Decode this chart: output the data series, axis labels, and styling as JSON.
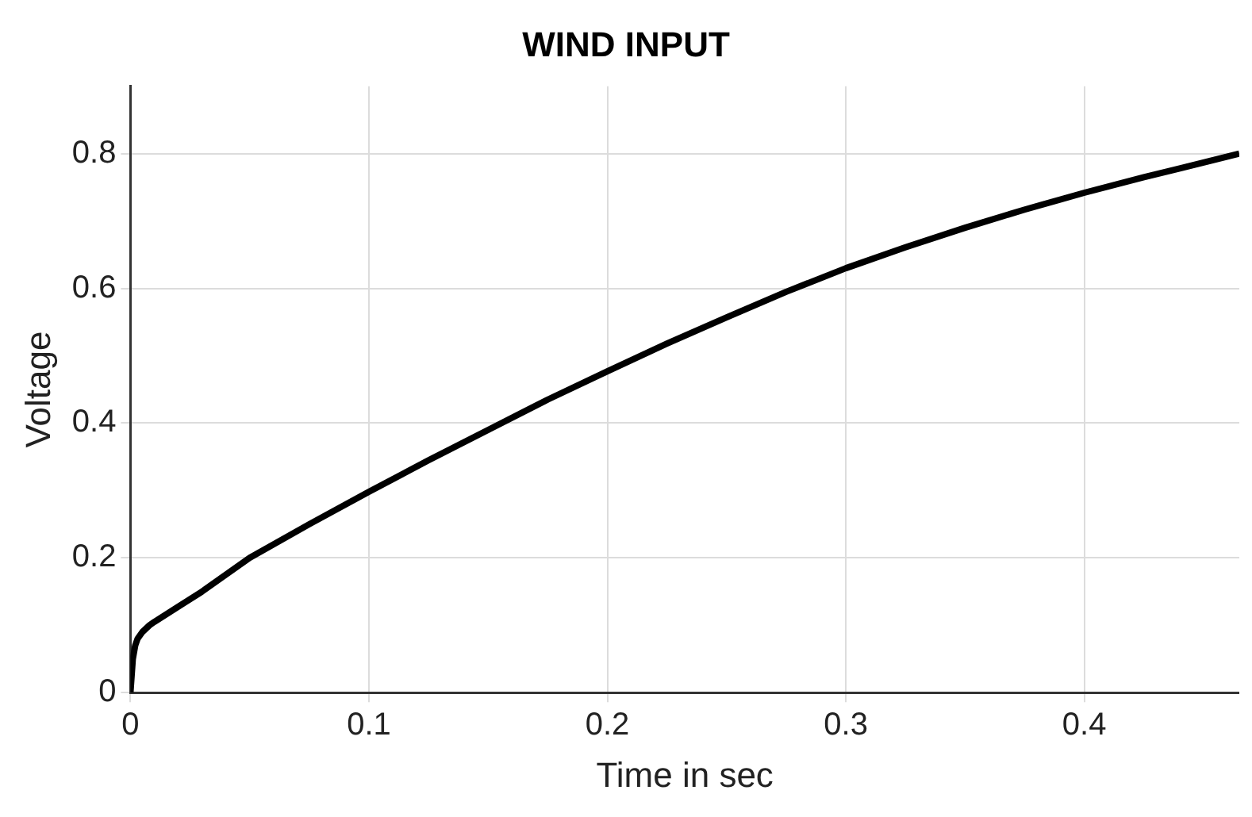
{
  "chart_data": {
    "type": "line",
    "title": "WIND INPUT",
    "xlabel": "Time in sec",
    "ylabel": "Voltage",
    "xlim": [
      0,
      0.465
    ],
    "xticks": [
      0,
      0.1,
      0.2,
      0.3,
      0.4
    ],
    "ylim": [
      0,
      0.9
    ],
    "yticks": [
      0,
      0.2,
      0.4,
      0.6,
      0.8
    ],
    "grid": true,
    "series": [
      {
        "color": "#000000",
        "x": [
          0,
          0.001,
          0.002,
          0.003,
          0.005,
          0.008,
          0.01,
          0.03,
          0.05,
          0.075,
          0.1,
          0.125,
          0.15,
          0.175,
          0.2,
          0.225,
          0.25,
          0.275,
          0.3,
          0.325,
          0.35,
          0.375,
          0.4,
          0.425,
          0.44,
          0.465
        ],
        "values": [
          0,
          0.05,
          0.07,
          0.08,
          0.09,
          0.1,
          0.105,
          0.15,
          0.2,
          0.25,
          0.298,
          0.345,
          0.39,
          0.435,
          0.477,
          0.518,
          0.557,
          0.595,
          0.63,
          0.661,
          0.69,
          0.717,
          0.742,
          0.765,
          0.778,
          0.8
        ]
      }
    ]
  }
}
